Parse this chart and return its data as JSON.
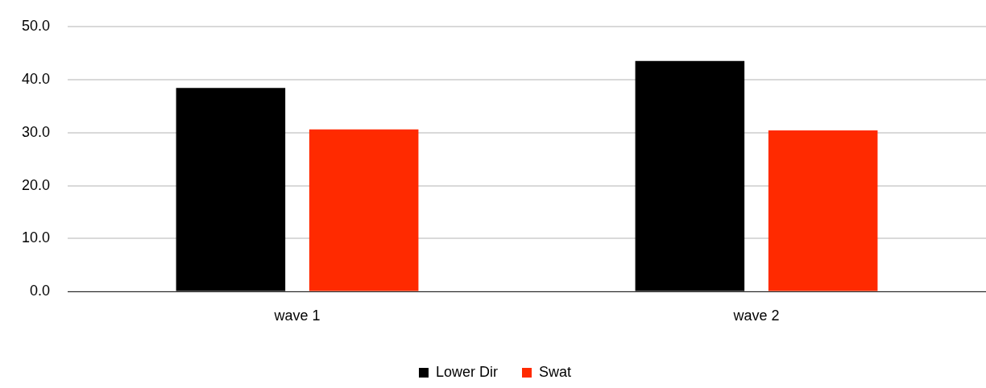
{
  "chart_data": {
    "type": "bar",
    "categories": [
      "wave 1",
      "wave 2"
    ],
    "series": [
      {
        "name": "Lower Dir",
        "color": "#000000",
        "values": [
          38.4,
          43.5
        ]
      },
      {
        "name": "Swat",
        "color": "#ff2a00",
        "values": [
          30.6,
          30.4
        ]
      }
    ],
    "ylim": [
      0,
      50
    ],
    "yticks": [
      {
        "value": 0,
        "label": "0.0"
      },
      {
        "value": 10,
        "label": "10.0"
      },
      {
        "value": 20,
        "label": "20.0"
      },
      {
        "value": 30,
        "label": "30.0"
      },
      {
        "value": 40,
        "label": "40.0"
      },
      {
        "value": 50,
        "label": "50.0"
      }
    ],
    "grid": "y",
    "legend": "bottom"
  }
}
